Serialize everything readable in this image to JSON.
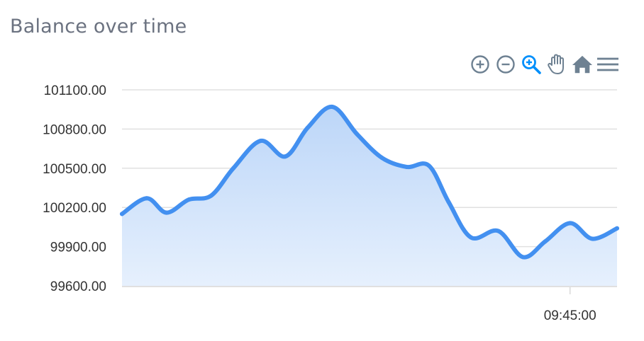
{
  "header": {
    "title": "Balance over time"
  },
  "toolbar": {
    "icons": [
      "zoom-in-icon",
      "zoom-out-icon",
      "selection-zoom-icon",
      "pan-hand-icon",
      "reset-home-icon",
      "menu-icon"
    ],
    "active": "selection-zoom-icon",
    "icon_color": "#6e8192",
    "active_color": "#008ffb"
  },
  "colors": {
    "line": "#4390f0",
    "area_top": "#bcd6f8",
    "area_bottom": "#e6f0fd",
    "grid": "#e0e0e0"
  },
  "chart_data": {
    "type": "area",
    "title": "Balance over time",
    "xlabel": "",
    "ylabel": "",
    "ylim": [
      99600,
      101100
    ],
    "yticks": [
      "101100.00",
      "100800.00",
      "100500.00",
      "100200.00",
      "99900.00",
      "99600.00"
    ],
    "xticks": [
      {
        "label": "09:45:00",
        "x": 0.905
      }
    ],
    "grid": true,
    "series": [
      {
        "values": [
          [
            0.0,
            100150
          ],
          [
            0.05,
            100270
          ],
          [
            0.09,
            100160
          ],
          [
            0.135,
            100260
          ],
          [
            0.18,
            100290
          ],
          [
            0.225,
            100500
          ],
          [
            0.28,
            100710
          ],
          [
            0.33,
            100590
          ],
          [
            0.375,
            100810
          ],
          [
            0.425,
            100970
          ],
          [
            0.475,
            100760
          ],
          [
            0.525,
            100580
          ],
          [
            0.575,
            100510
          ],
          [
            0.62,
            100520
          ],
          [
            0.66,
            100240
          ],
          [
            0.705,
            99970
          ],
          [
            0.76,
            100020
          ],
          [
            0.81,
            99820
          ],
          [
            0.855,
            99940
          ],
          [
            0.905,
            100080
          ],
          [
            0.95,
            99960
          ],
          [
            1.0,
            100040
          ]
        ]
      }
    ]
  }
}
